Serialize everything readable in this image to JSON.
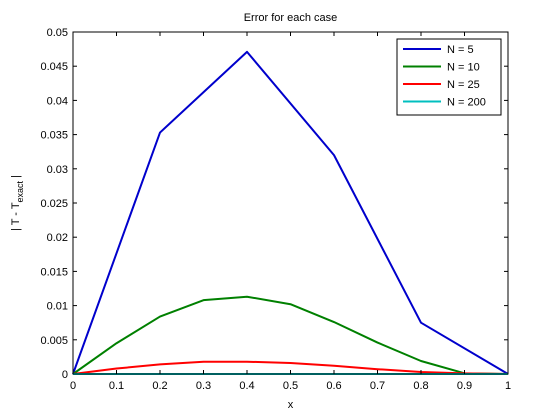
{
  "chart_data": {
    "type": "line",
    "title": "Error for each case",
    "xlabel": "x",
    "ylabel_parts": {
      "prefix": "| T - T",
      "subscript": "exact",
      "suffix": " |"
    },
    "xlim": [
      0,
      1
    ],
    "ylim": [
      0,
      0.05
    ],
    "x_ticks": [
      "0",
      "0.1",
      "0.2",
      "0.3",
      "0.4",
      "0.5",
      "0.6",
      "0.7",
      "0.8",
      "0.9",
      "1"
    ],
    "y_ticks": [
      "0",
      "0.005",
      "0.01",
      "0.015",
      "0.02",
      "0.025",
      "0.03",
      "0.035",
      "0.04",
      "0.045",
      "0.05"
    ],
    "grid": false,
    "legend_position": "top-right",
    "series": [
      {
        "name": "N = 5",
        "color": "#0000cc",
        "x": [
          0,
          0.2,
          0.4,
          0.6,
          0.8,
          1.0
        ],
        "y": [
          0,
          0.0353,
          0.0471,
          0.032,
          0.0075,
          0
        ]
      },
      {
        "name": "N = 10",
        "color": "#008000",
        "x": [
          0,
          0.1,
          0.2,
          0.3,
          0.4,
          0.5,
          0.6,
          0.7,
          0.8,
          0.9,
          1.0
        ],
        "y": [
          0,
          0.0045,
          0.0084,
          0.0108,
          0.0113,
          0.0102,
          0.0076,
          0.0046,
          0.0019,
          0.0001,
          0
        ]
      },
      {
        "name": "N = 25",
        "color": "#ff0000",
        "x": [
          0,
          0.1,
          0.2,
          0.3,
          0.4,
          0.5,
          0.6,
          0.7,
          0.8,
          0.9,
          1.0
        ],
        "y": [
          0,
          0.0008,
          0.0014,
          0.0018,
          0.0018,
          0.0016,
          0.0012,
          0.0007,
          0.0003,
          0.0001,
          0
        ]
      },
      {
        "name": "N = 200",
        "color": "#00bfbf",
        "x": [
          0,
          0.1,
          0.2,
          0.3,
          0.4,
          0.5,
          0.6,
          0.7,
          0.8,
          0.9,
          1.0
        ],
        "y": [
          0,
          0,
          0,
          0,
          0,
          0,
          0,
          0,
          0,
          0,
          0
        ]
      }
    ]
  }
}
